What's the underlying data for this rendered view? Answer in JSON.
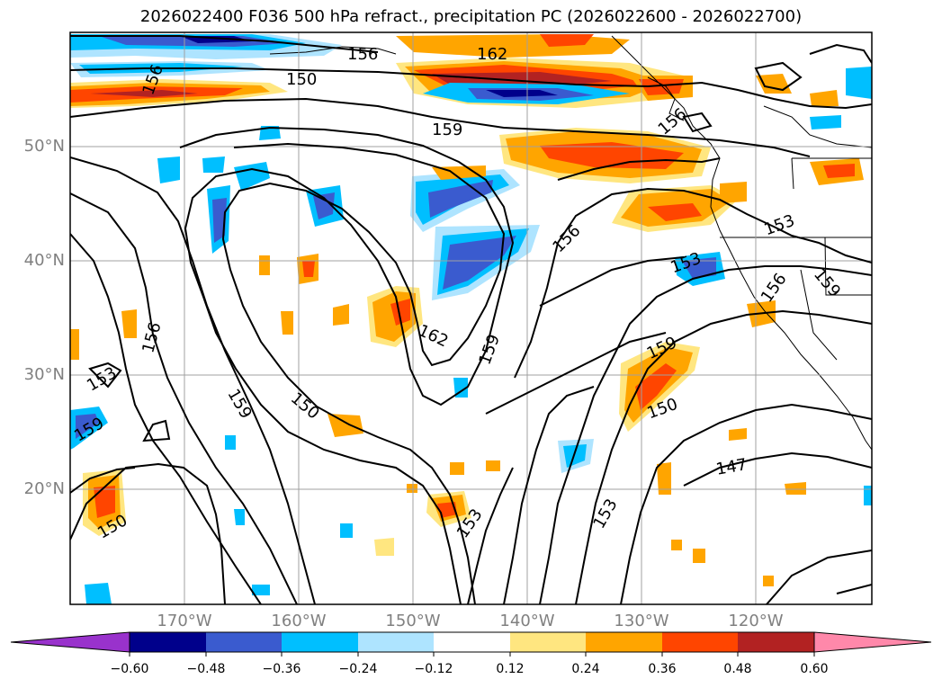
{
  "title": "2026022400 F036 500 hPa refract., precipitation PC (2026022600 - 2026022700)",
  "map": {
    "lat_labels": [
      "50°N",
      "40°N",
      "30°N",
      "20°N"
    ],
    "lon_labels": [
      "170°W",
      "160°W",
      "150°W",
      "140°W",
      "130°W",
      "120°W"
    ],
    "contour_labels": [
      "156",
      "162",
      "150",
      "159",
      "156",
      "153",
      "159",
      "156",
      "162",
      "159",
      "153",
      "156",
      "153",
      "156",
      "159",
      "150",
      "159",
      "150",
      "153",
      "153",
      "147",
      "150",
      "159",
      "156"
    ]
  },
  "colorbar": {
    "ticks": [
      "−0.60",
      "−0.48",
      "−0.36",
      "−0.24",
      "−0.12",
      "0.12",
      "0.24",
      "0.36",
      "0.48",
      "0.60"
    ],
    "colors": [
      "#9932cc",
      "#00008b",
      "#3a5bcf",
      "#00bfff",
      "#aee4ff",
      "#ffffff",
      "#ffe680",
      "#ffa500",
      "#ff4500",
      "#b22222",
      "#ff88aa"
    ]
  },
  "colors": {
    "contour": "#000000",
    "grid": "#a0a0a0",
    "coast": "#000000"
  }
}
